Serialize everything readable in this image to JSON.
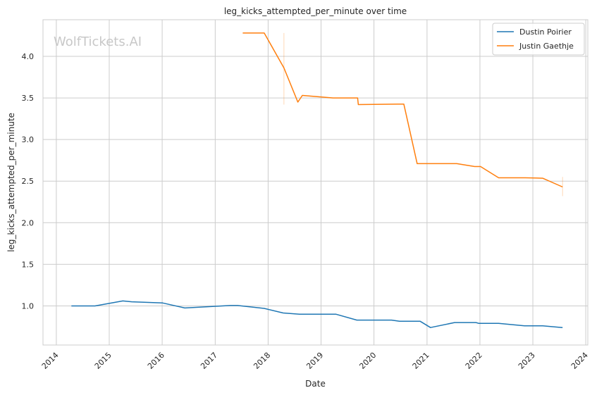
{
  "chart_data": {
    "type": "line",
    "title": "leg_kicks_attempted_per_minute over time",
    "xlabel": "Date",
    "ylabel": "leg_kicks_attempted_per_minute",
    "watermark": "WolfTickets.AI",
    "xlim": [
      "2013-10-01",
      "2024-01-15"
    ],
    "ylim": [
      0.53,
      4.44
    ],
    "x_ticks": [
      "2014",
      "2015",
      "2016",
      "2017",
      "2018",
      "2019",
      "2020",
      "2021",
      "2022",
      "2023",
      "2024"
    ],
    "y_ticks": [
      "1.0",
      "1.5",
      "2.0",
      "2.5",
      "3.0",
      "3.5",
      "4.0"
    ],
    "grid": true,
    "legend_position": "top-right",
    "series": [
      {
        "name": "Dustin Poirier",
        "color": "#1f77b4",
        "points": [
          [
            "2014-04-15",
            1.0
          ],
          [
            "2014-09-25",
            1.0
          ],
          [
            "2015-04-05",
            1.06
          ],
          [
            "2015-06-05",
            1.05
          ],
          [
            "2016-01-05",
            1.035
          ],
          [
            "2016-06-05",
            0.975
          ],
          [
            "2017-04-15",
            1.005
          ],
          [
            "2017-06-05",
            1.005
          ],
          [
            "2017-12-05",
            0.97
          ],
          [
            "2018-04-15",
            0.915
          ],
          [
            "2018-08-05",
            0.9
          ],
          [
            "2019-04-15",
            0.9
          ],
          [
            "2019-09-05",
            0.83
          ],
          [
            "2020-05-01",
            0.83
          ],
          [
            "2020-06-25",
            0.815
          ],
          [
            "2020-11-15",
            0.815
          ],
          [
            "2021-01-25",
            0.74
          ],
          [
            "2021-07-10",
            0.8
          ],
          [
            "2021-12-05",
            0.8
          ],
          [
            "2021-12-25",
            0.79
          ],
          [
            "2022-05-10",
            0.79
          ],
          [
            "2022-11-05",
            0.76
          ],
          [
            "2023-03-10",
            0.76
          ],
          [
            "2023-07-25",
            0.74
          ]
        ]
      },
      {
        "name": "Justin Gaethje",
        "color": "#ff7f0e",
        "points": [
          [
            "2017-07-10",
            4.28
          ],
          [
            "2017-12-05",
            4.28
          ],
          [
            "2018-04-20",
            3.86
          ],
          [
            "2018-07-25",
            3.45
          ],
          [
            "2018-08-25",
            3.53
          ],
          [
            "2019-03-25",
            3.5
          ],
          [
            "2019-09-10",
            3.5
          ],
          [
            "2019-09-15",
            3.42
          ],
          [
            "2020-06-10",
            3.425
          ],
          [
            "2020-07-25",
            3.425
          ],
          [
            "2020-10-25",
            2.71
          ],
          [
            "2021-07-25",
            2.71
          ],
          [
            "2021-11-25",
            2.675
          ],
          [
            "2022-01-05",
            2.675
          ],
          [
            "2022-05-10",
            2.54
          ],
          [
            "2022-11-10",
            2.54
          ],
          [
            "2023-03-10",
            2.535
          ],
          [
            "2023-07-25",
            2.43
          ]
        ]
      }
    ],
    "error_bars": [
      {
        "series": "Justin Gaethje",
        "x": "2018-04-20",
        "y_low": 3.42,
        "y_high": 4.28
      },
      {
        "series": "Justin Gaethje",
        "x": "2023-07-25",
        "y_low": 2.32,
        "y_high": 2.55
      }
    ]
  }
}
